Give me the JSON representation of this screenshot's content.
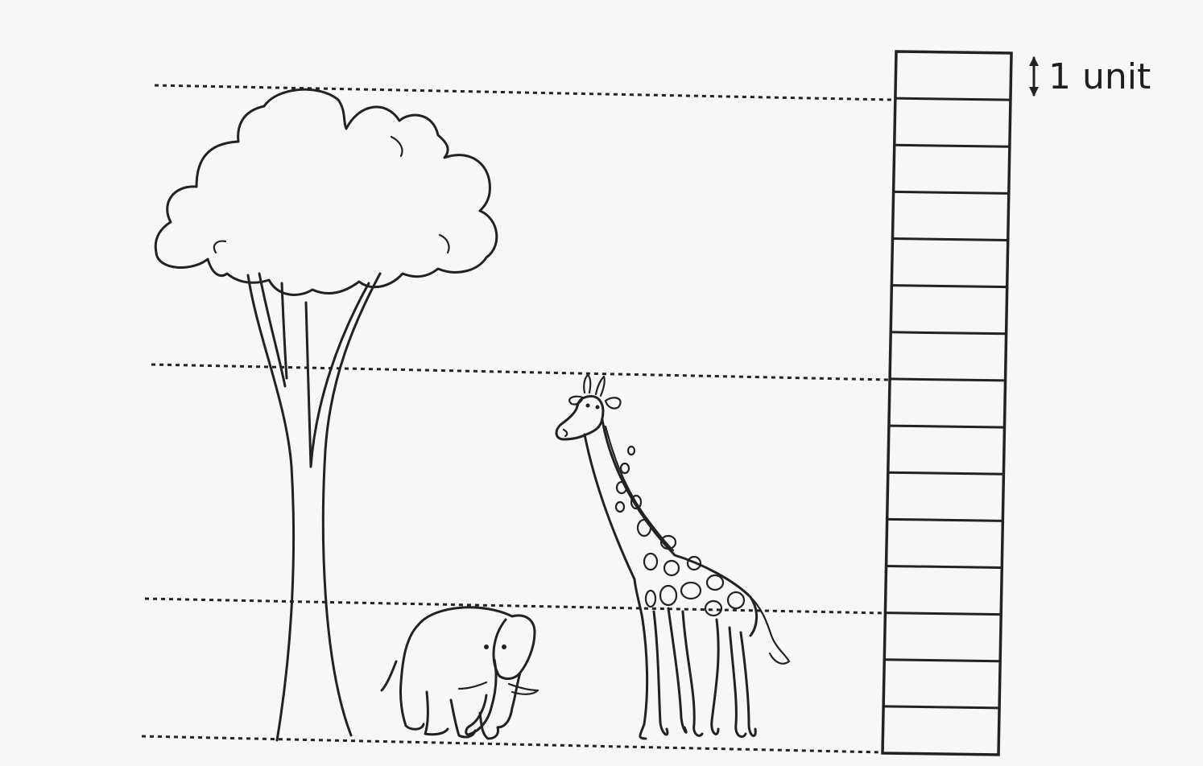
{
  "ruler": {
    "unit_label": "1 unit",
    "total_units": 15
  },
  "reference_lines": [
    {
      "name": "tree-top",
      "units": 14
    },
    {
      "name": "giraffe-top",
      "units": 8
    },
    {
      "name": "elephant-top",
      "units": 3
    },
    {
      "name": "ground",
      "units": 0
    }
  ],
  "objects": [
    {
      "name": "tree",
      "height_units": 14
    },
    {
      "name": "giraffe",
      "height_units": 8
    },
    {
      "name": "elephant",
      "height_units": 3
    }
  ]
}
